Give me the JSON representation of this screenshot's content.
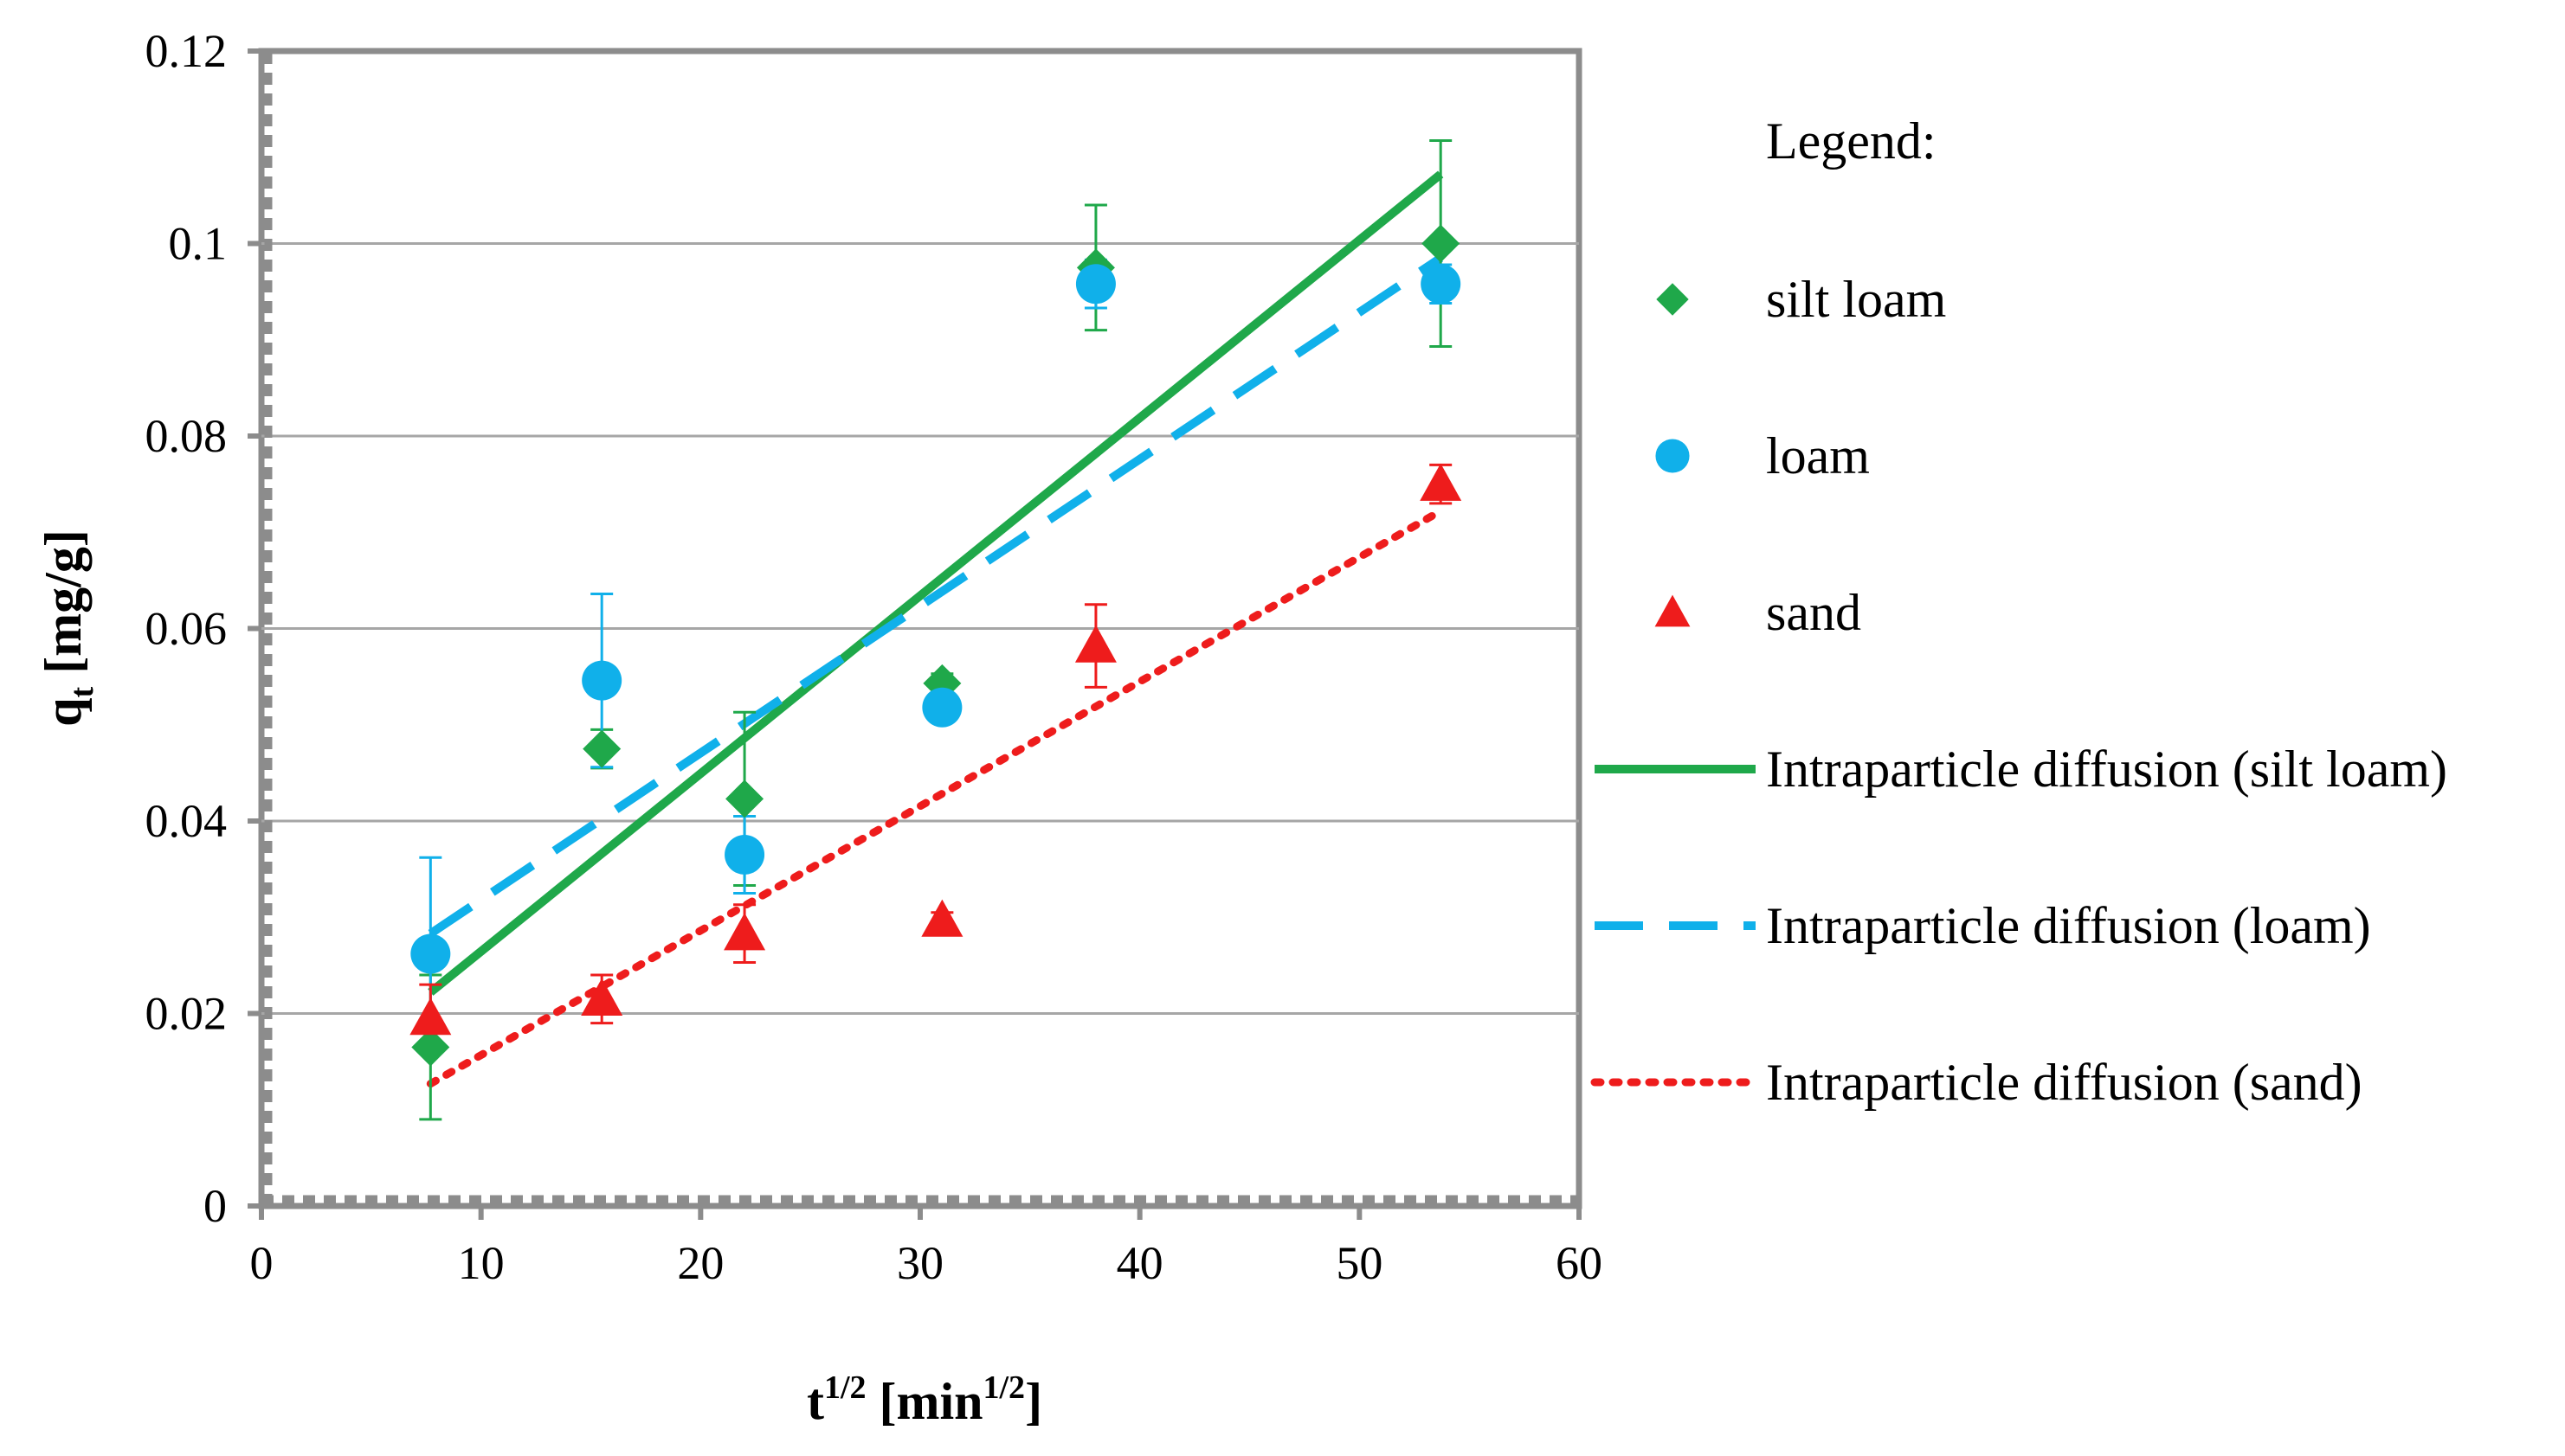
{
  "chart_data": {
    "type": "scatter",
    "title": "",
    "xlabel": {
      "base": "t",
      "sup": "1/2",
      "unit_open": " [min",
      "unit_sup": "1/2",
      "unit_close": "]"
    },
    "ylabel": {
      "base": "q",
      "sub": "t",
      "unit": " [mg/g]"
    },
    "xlim": [
      0,
      60
    ],
    "ylim": [
      0,
      0.12
    ],
    "x_ticks": [
      0,
      10,
      20,
      30,
      40,
      50,
      60
    ],
    "x_tick_labels": [
      "0",
      "10",
      "20",
      "30",
      "40",
      "50",
      "60"
    ],
    "y_ticks": [
      0,
      0.02,
      0.04,
      0.06,
      0.08,
      0.1,
      0.12
    ],
    "y_tick_labels": [
      "0",
      "0.02",
      "0.04",
      "0.06",
      "0.08",
      "0.1",
      "0.12"
    ],
    "grid": "horizontal",
    "legend_title": "Legend:",
    "series": [
      {
        "name": "silt loam",
        "marker": "diamond",
        "color": "#1fa84a",
        "x": [
          7.7,
          15.5,
          22.0,
          31.0,
          38.0,
          53.7
        ],
        "y": [
          0.0165,
          0.0475,
          0.0423,
          0.0543,
          0.0975,
          0.1
        ],
        "error": [
          0.0075,
          0.002,
          0.009,
          0.001,
          0.0065,
          0.0107
        ]
      },
      {
        "name": "loam",
        "marker": "circle",
        "color": "#10b0ea",
        "x": [
          7.7,
          15.5,
          22.0,
          31.0,
          38.0,
          53.7
        ],
        "y": [
          0.0262,
          0.0546,
          0.0365,
          0.0518,
          0.0958,
          0.0958
        ],
        "error": [
          0.01,
          0.009,
          0.004,
          0.0015,
          0.0025,
          0.002
        ]
      },
      {
        "name": "sand",
        "marker": "triangle",
        "color": "#ee1c1c",
        "x": [
          7.7,
          15.5,
          22.0,
          31.0,
          38.0,
          53.7
        ],
        "y": [
          0.0195,
          0.0215,
          0.0283,
          0.0297,
          0.0582,
          0.075
        ],
        "error": [
          0.0035,
          0.0025,
          0.003,
          0.0008,
          0.0043,
          0.002
        ]
      }
    ],
    "fit_lines": [
      {
        "name": "Intraparticle diffusion (silt loam)",
        "style": "solid",
        "color": "#1fa84a",
        "x": [
          7.7,
          53.7
        ],
        "y": [
          0.0222,
          0.1072
        ]
      },
      {
        "name": "Intraparticle diffusion (loam)",
        "style": "dashed",
        "color": "#10b0ea",
        "x": [
          7.7,
          53.7
        ],
        "y": [
          0.0283,
          0.0985
        ]
      },
      {
        "name": "Intraparticle diffusion (sand)",
        "style": "dotted",
        "color": "#ee1c1c",
        "x": [
          7.7,
          53.7
        ],
        "y": [
          0.0127,
          0.0722
        ]
      }
    ]
  }
}
